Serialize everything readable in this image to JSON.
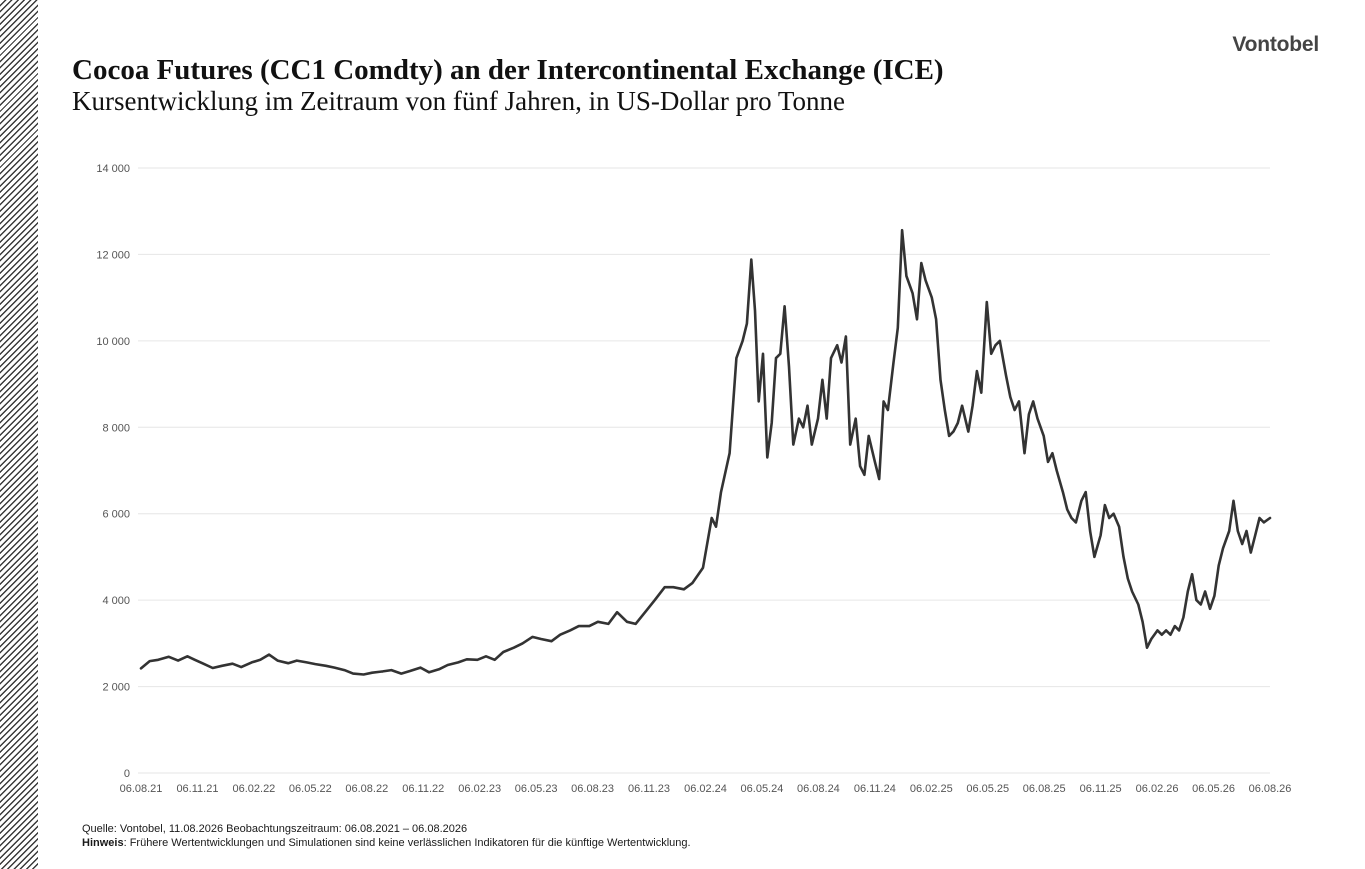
{
  "brand": {
    "logo_text": "Vontobel"
  },
  "header": {
    "title": "Cocoa Futures (CC1 Comdty)  an der Intercontinental Exchange (ICE)",
    "subtitle": "Kursentwicklung im Zeitraum von fünf Jahren, in US-Dollar pro Tonne"
  },
  "footer": {
    "source": "Quelle: Vontobel, 11.08.2026 Beobachtungszeitraum: 06.08.2021 –  06.08.2026",
    "note_label": "Hinweis",
    "note_text": ": Frühere Wertentwicklungen und Simulationen sind keine verlässlichen Indikatoren für die künftige Wertentwicklung."
  },
  "colors": {
    "line": "#333333",
    "grid": "#e6e6e6",
    "hatch": "#3a3a3a"
  },
  "chart_data": {
    "type": "line",
    "title": "",
    "xlabel": "",
    "ylabel": "",
    "ylim": [
      0,
      14000
    ],
    "y_ticks": [
      0,
      2000,
      4000,
      6000,
      8000,
      10000,
      12000,
      14000
    ],
    "y_tick_labels": [
      "0",
      "2 000",
      "4 000",
      "6 000",
      "8 000",
      "10 000",
      "12 000",
      "14 000"
    ],
    "x_tick_labels": [
      "06.08.21",
      "06.11.21",
      "06.02.22",
      "06.05.22",
      "06.08.22",
      "06.11.22",
      "06.02.23",
      "06.05.23",
      "06.08.23",
      "06.11.23",
      "06.02.24",
      "06.05.24",
      "06.08.24",
      "06.11.24",
      "06.02.25",
      "06.05.25",
      "06.08.25",
      "06.11.25",
      "06.02.26",
      "06.05.26",
      "06.08.26"
    ],
    "xlim": [
      "2021-08-06",
      "2026-08-06"
    ],
    "grid": true,
    "legend": "none",
    "series": [
      {
        "points": [
          [
            "2021-08-06",
            2420
          ],
          [
            "2021-08-20",
            2590
          ],
          [
            "2021-09-03",
            2620
          ],
          [
            "2021-09-20",
            2690
          ],
          [
            "2021-10-05",
            2600
          ],
          [
            "2021-10-20",
            2700
          ],
          [
            "2021-11-01",
            2620
          ],
          [
            "2021-11-15",
            2530
          ],
          [
            "2021-11-30",
            2430
          ],
          [
            "2021-12-15",
            2480
          ],
          [
            "2022-01-01",
            2530
          ],
          [
            "2022-01-15",
            2450
          ],
          [
            "2022-02-01",
            2560
          ],
          [
            "2022-02-15",
            2620
          ],
          [
            "2022-03-01",
            2740
          ],
          [
            "2022-03-15",
            2600
          ],
          [
            "2022-04-01",
            2540
          ],
          [
            "2022-04-15",
            2600
          ],
          [
            "2022-05-01",
            2560
          ],
          [
            "2022-05-15",
            2520
          ],
          [
            "2022-06-01",
            2480
          ],
          [
            "2022-06-15",
            2440
          ],
          [
            "2022-07-01",
            2380
          ],
          [
            "2022-07-15",
            2300
          ],
          [
            "2022-08-01",
            2280
          ],
          [
            "2022-08-15",
            2320
          ],
          [
            "2022-09-01",
            2350
          ],
          [
            "2022-09-15",
            2380
          ],
          [
            "2022-10-01",
            2300
          ],
          [
            "2022-10-15",
            2360
          ],
          [
            "2022-11-01",
            2440
          ],
          [
            "2022-11-15",
            2330
          ],
          [
            "2022-12-01",
            2400
          ],
          [
            "2022-12-15",
            2500
          ],
          [
            "2023-01-01",
            2560
          ],
          [
            "2023-01-15",
            2630
          ],
          [
            "2023-02-01",
            2620
          ],
          [
            "2023-02-15",
            2700
          ],
          [
            "2023-03-01",
            2620
          ],
          [
            "2023-03-15",
            2800
          ],
          [
            "2023-04-01",
            2900
          ],
          [
            "2023-04-15",
            3000
          ],
          [
            "2023-05-01",
            3150
          ],
          [
            "2023-05-15",
            3100
          ],
          [
            "2023-06-01",
            3050
          ],
          [
            "2023-06-15",
            3200
          ],
          [
            "2023-07-01",
            3300
          ],
          [
            "2023-07-15",
            3400
          ],
          [
            "2023-08-01",
            3400
          ],
          [
            "2023-08-15",
            3500
          ],
          [
            "2023-09-01",
            3450
          ],
          [
            "2023-09-15",
            3720
          ],
          [
            "2023-10-01",
            3500
          ],
          [
            "2023-10-15",
            3450
          ],
          [
            "2023-11-01",
            3750
          ],
          [
            "2023-11-15",
            4000
          ],
          [
            "2023-12-01",
            4300
          ],
          [
            "2023-12-15",
            4300
          ],
          [
            "2024-01-01",
            4250
          ],
          [
            "2024-01-15",
            4400
          ],
          [
            "2024-02-01",
            4750
          ],
          [
            "2024-02-15",
            5900
          ],
          [
            "2024-02-22",
            5700
          ],
          [
            "2024-03-01",
            6500
          ],
          [
            "2024-03-15",
            7400
          ],
          [
            "2024-03-26",
            9600
          ],
          [
            "2024-04-05",
            10000
          ],
          [
            "2024-04-12",
            10400
          ],
          [
            "2024-04-19",
            11880
          ],
          [
            "2024-04-25",
            10700
          ],
          [
            "2024-05-01",
            8600
          ],
          [
            "2024-05-08",
            9700
          ],
          [
            "2024-05-15",
            7300
          ],
          [
            "2024-05-22",
            8100
          ],
          [
            "2024-05-29",
            9600
          ],
          [
            "2024-06-05",
            9700
          ],
          [
            "2024-06-12",
            10800
          ],
          [
            "2024-06-19",
            9400
          ],
          [
            "2024-06-26",
            7600
          ],
          [
            "2024-07-05",
            8200
          ],
          [
            "2024-07-12",
            8000
          ],
          [
            "2024-07-19",
            8500
          ],
          [
            "2024-07-26",
            7600
          ],
          [
            "2024-08-05",
            8200
          ],
          [
            "2024-08-12",
            9100
          ],
          [
            "2024-08-19",
            8200
          ],
          [
            "2024-08-26",
            9600
          ],
          [
            "2024-09-05",
            9900
          ],
          [
            "2024-09-12",
            9500
          ],
          [
            "2024-09-19",
            10100
          ],
          [
            "2024-09-26",
            7600
          ],
          [
            "2024-10-05",
            8200
          ],
          [
            "2024-10-12",
            7100
          ],
          [
            "2024-10-19",
            6900
          ],
          [
            "2024-10-26",
            7800
          ],
          [
            "2024-11-05",
            7200
          ],
          [
            "2024-11-12",
            6800
          ],
          [
            "2024-11-19",
            8600
          ],
          [
            "2024-11-26",
            8400
          ],
          [
            "2024-12-05",
            9500
          ],
          [
            "2024-12-12",
            10300
          ],
          [
            "2024-12-19",
            12560
          ],
          [
            "2024-12-26",
            11500
          ],
          [
            "2025-01-05",
            11100
          ],
          [
            "2025-01-12",
            10500
          ],
          [
            "2025-01-19",
            11800
          ],
          [
            "2025-01-26",
            11400
          ],
          [
            "2025-02-05",
            11000
          ],
          [
            "2025-02-12",
            10500
          ],
          [
            "2025-02-19",
            9100
          ],
          [
            "2025-02-26",
            8400
          ],
          [
            "2025-03-05",
            7800
          ],
          [
            "2025-03-12",
            7900
          ],
          [
            "2025-03-19",
            8100
          ],
          [
            "2025-03-26",
            8500
          ],
          [
            "2025-04-05",
            7900
          ],
          [
            "2025-04-12",
            8500
          ],
          [
            "2025-04-19",
            9300
          ],
          [
            "2025-04-26",
            8800
          ],
          [
            "2025-05-05",
            10900
          ],
          [
            "2025-05-12",
            9700
          ],
          [
            "2025-05-19",
            9900
          ],
          [
            "2025-05-26",
            10000
          ],
          [
            "2025-06-05",
            9200
          ],
          [
            "2025-06-12",
            8700
          ],
          [
            "2025-06-19",
            8400
          ],
          [
            "2025-06-26",
            8600
          ],
          [
            "2025-07-05",
            7400
          ],
          [
            "2025-07-12",
            8300
          ],
          [
            "2025-07-19",
            8600
          ],
          [
            "2025-07-26",
            8200
          ],
          [
            "2025-08-05",
            7800
          ],
          [
            "2025-08-12",
            7200
          ],
          [
            "2025-08-19",
            7400
          ],
          [
            "2025-08-26",
            7000
          ],
          [
            "2025-09-05",
            6500
          ],
          [
            "2025-09-12",
            6100
          ],
          [
            "2025-09-19",
            5900
          ],
          [
            "2025-09-26",
            5800
          ],
          [
            "2025-10-05",
            6300
          ],
          [
            "2025-10-12",
            6500
          ],
          [
            "2025-10-19",
            5600
          ],
          [
            "2025-10-26",
            5000
          ],
          [
            "2025-11-05",
            5500
          ],
          [
            "2025-11-12",
            6200
          ],
          [
            "2025-11-19",
            5900
          ],
          [
            "2025-11-26",
            6000
          ],
          [
            "2025-12-05",
            5700
          ],
          [
            "2025-12-12",
            5000
          ],
          [
            "2025-12-19",
            4500
          ],
          [
            "2025-12-26",
            4200
          ],
          [
            "2026-01-05",
            3900
          ],
          [
            "2026-01-12",
            3500
          ],
          [
            "2026-01-19",
            2900
          ],
          [
            "2026-01-26",
            3100
          ],
          [
            "2026-02-05",
            3300
          ],
          [
            "2026-02-12",
            3200
          ],
          [
            "2026-02-19",
            3300
          ],
          [
            "2026-02-26",
            3200
          ],
          [
            "2026-03-05",
            3400
          ],
          [
            "2026-03-12",
            3300
          ],
          [
            "2026-03-19",
            3600
          ],
          [
            "2026-03-26",
            4200
          ],
          [
            "2026-04-02",
            4600
          ],
          [
            "2026-04-09",
            4000
          ],
          [
            "2026-04-16",
            3900
          ],
          [
            "2026-04-23",
            4200
          ],
          [
            "2026-05-01",
            3800
          ],
          [
            "2026-05-08",
            4100
          ],
          [
            "2026-05-15",
            4800
          ],
          [
            "2026-05-22",
            5200
          ],
          [
            "2026-06-01",
            5600
          ],
          [
            "2026-06-08",
            6300
          ],
          [
            "2026-06-15",
            5600
          ],
          [
            "2026-06-22",
            5300
          ],
          [
            "2026-06-29",
            5600
          ],
          [
            "2026-07-06",
            5100
          ],
          [
            "2026-07-13",
            5500
          ],
          [
            "2026-07-20",
            5900
          ],
          [
            "2026-07-27",
            5800
          ],
          [
            "2026-08-06",
            5900
          ]
        ]
      }
    ]
  }
}
